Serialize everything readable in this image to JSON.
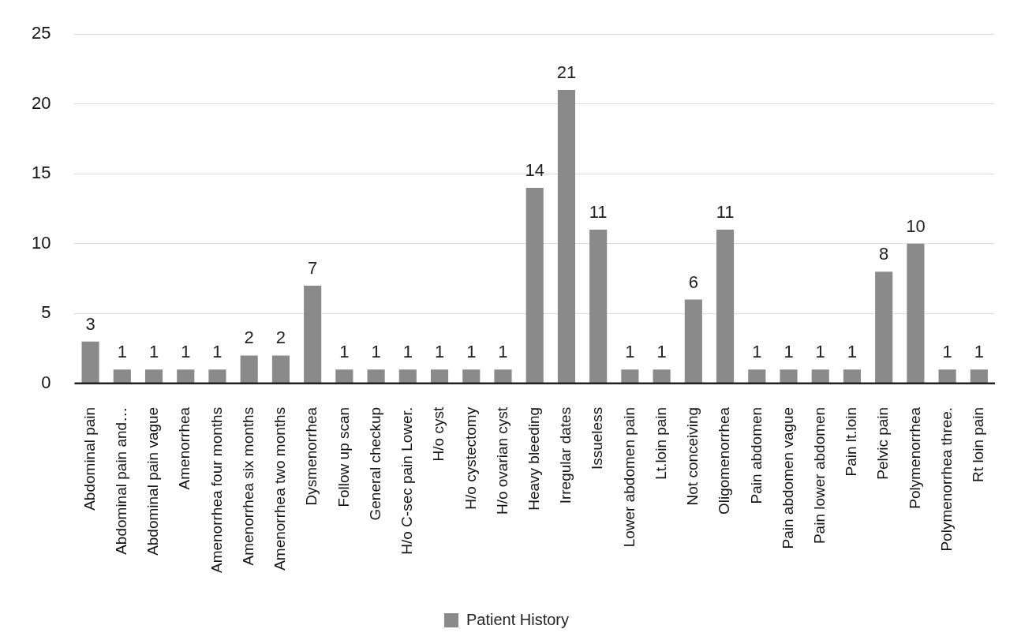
{
  "chart_data": {
    "type": "bar",
    "categories": [
      "Abdominal pain",
      "Abdominal pain and…",
      "Abdominal pain vague",
      "Amenorrhea",
      "Amenorrhea four months",
      "Amenorrhea six months",
      "Amenorrhea two months",
      "Dysmenorrhea",
      "Follow up scan",
      "General checkup",
      "H/o C-sec pain Lower.",
      "H/o cyst",
      "H/o cystectomy",
      "H/o ovarian cyst",
      "Heavy bleeding",
      "Irregular dates",
      "Issueless",
      "Lower abdomen pain",
      "Lt.loin pain",
      "Not conceiving",
      "Oligomenorrhea",
      "Pain abdomen",
      "Pain abdomen vague",
      "Pain lower abdomen",
      "Pain lt.loin",
      "Pelvic pain",
      "Polymenorrhea",
      "Polymenorrhea three.",
      "Rt loin pain"
    ],
    "series": [
      {
        "name": "Patient History",
        "color": "#8a8a8a",
        "values": [
          3,
          1,
          1,
          1,
          1,
          2,
          2,
          7,
          1,
          1,
          1,
          1,
          1,
          1,
          14,
          21,
          11,
          1,
          1,
          6,
          11,
          1,
          1,
          1,
          1,
          8,
          10,
          1,
          1
        ]
      }
    ],
    "ylim": [
      0,
      25
    ],
    "yticks": [
      0,
      5,
      10,
      15,
      20,
      25
    ],
    "grid": "y",
    "legend": "bottom",
    "data_labels": true
  }
}
